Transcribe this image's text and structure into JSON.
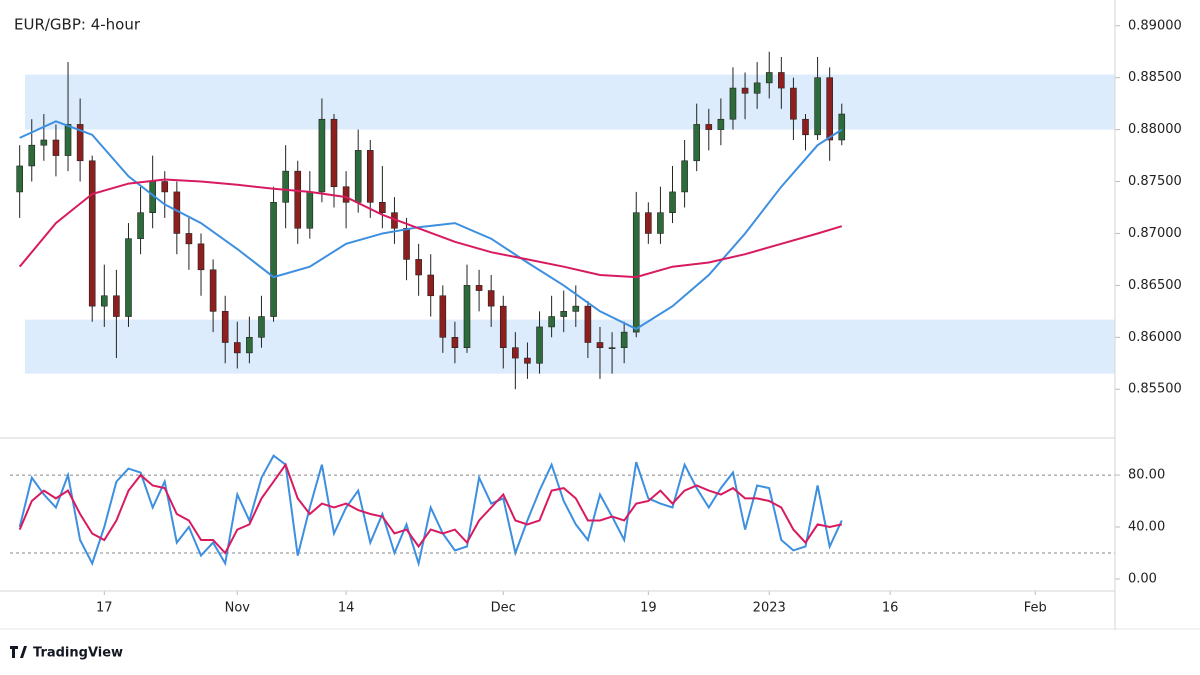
{
  "brand": "TradingView",
  "chart_data": [
    {
      "type": "candlestick",
      "title": "EUR/GBP: 4-hour",
      "x": [
        -7,
        -6,
        -5,
        -4,
        -3,
        -2,
        -1,
        0,
        1,
        2,
        3,
        4,
        5,
        6,
        7,
        8,
        9,
        10,
        11,
        12,
        13,
        14,
        15,
        16,
        17,
        18,
        19,
        20,
        21,
        22,
        23,
        24,
        25,
        26,
        27,
        28,
        29,
        30,
        31,
        32,
        33,
        34,
        35,
        36,
        37,
        38,
        39,
        40,
        41,
        42,
        43,
        44,
        45,
        46,
        47,
        48,
        49,
        50,
        51,
        52,
        53,
        54,
        55,
        56,
        57,
        58,
        59,
        60,
        61
      ],
      "open": [
        0.874,
        0.8765,
        0.8785,
        0.879,
        0.8775,
        0.8805,
        0.877,
        0.863,
        0.864,
        0.862,
        0.8695,
        0.872,
        0.875,
        0.874,
        0.87,
        0.869,
        0.8665,
        0.8625,
        0.8595,
        0.8585,
        0.86,
        0.862,
        0.873,
        0.876,
        0.8705,
        0.874,
        0.881,
        0.8745,
        0.873,
        0.878,
        0.873,
        0.872,
        0.8705,
        0.8675,
        0.866,
        0.864,
        0.86,
        0.859,
        0.865,
        0.8645,
        0.863,
        0.859,
        0.858,
        0.8575,
        0.861,
        0.862,
        0.8625,
        0.863,
        0.8595,
        0.859,
        0.859,
        0.8605,
        0.872,
        0.87,
        0.872,
        0.874,
        0.877,
        0.8805,
        0.88,
        0.881,
        0.884,
        0.8835,
        0.8845,
        0.8855,
        0.884,
        0.881,
        0.8795,
        0.885,
        0.879
      ],
      "high": [
        0.8785,
        0.881,
        0.8815,
        0.8805,
        0.8865,
        0.883,
        0.8775,
        0.867,
        0.8665,
        0.871,
        0.8745,
        0.8775,
        0.876,
        0.875,
        0.8715,
        0.87,
        0.8675,
        0.864,
        0.8615,
        0.862,
        0.864,
        0.8745,
        0.8785,
        0.877,
        0.876,
        0.883,
        0.8815,
        0.876,
        0.88,
        0.879,
        0.8765,
        0.8735,
        0.8715,
        0.869,
        0.868,
        0.865,
        0.8615,
        0.867,
        0.8665,
        0.866,
        0.864,
        0.8605,
        0.8595,
        0.8625,
        0.864,
        0.8645,
        0.865,
        0.8635,
        0.861,
        0.8605,
        0.8615,
        0.874,
        0.873,
        0.8745,
        0.8765,
        0.879,
        0.8825,
        0.882,
        0.883,
        0.886,
        0.8855,
        0.8865,
        0.8875,
        0.887,
        0.885,
        0.8815,
        0.887,
        0.886,
        0.8825
      ],
      "low": [
        0.8715,
        0.875,
        0.877,
        0.8755,
        0.876,
        0.875,
        0.8615,
        0.861,
        0.858,
        0.861,
        0.868,
        0.8705,
        0.8715,
        0.868,
        0.8665,
        0.864,
        0.8605,
        0.8575,
        0.857,
        0.8575,
        0.859,
        0.8615,
        0.8705,
        0.869,
        0.8695,
        0.873,
        0.8725,
        0.8705,
        0.872,
        0.8715,
        0.8705,
        0.869,
        0.8655,
        0.864,
        0.862,
        0.8585,
        0.8575,
        0.8585,
        0.8625,
        0.861,
        0.857,
        0.855,
        0.856,
        0.8565,
        0.86,
        0.8605,
        0.861,
        0.858,
        0.856,
        0.8565,
        0.8575,
        0.86,
        0.869,
        0.869,
        0.871,
        0.8725,
        0.876,
        0.878,
        0.8785,
        0.88,
        0.881,
        0.882,
        0.883,
        0.882,
        0.879,
        0.878,
        0.879,
        0.877,
        0.8785
      ],
      "close": [
        0.8765,
        0.8785,
        0.879,
        0.8775,
        0.8805,
        0.877,
        0.863,
        0.864,
        0.862,
        0.8695,
        0.872,
        0.875,
        0.874,
        0.87,
        0.869,
        0.8665,
        0.8625,
        0.8595,
        0.8585,
        0.86,
        0.862,
        0.873,
        0.876,
        0.8705,
        0.874,
        0.881,
        0.8745,
        0.873,
        0.878,
        0.873,
        0.872,
        0.8705,
        0.8675,
        0.866,
        0.864,
        0.86,
        0.859,
        0.865,
        0.8645,
        0.863,
        0.859,
        0.858,
        0.8575,
        0.861,
        0.862,
        0.8625,
        0.863,
        0.8595,
        0.859,
        0.859,
        0.8605,
        0.872,
        0.87,
        0.872,
        0.874,
        0.877,
        0.8805,
        0.88,
        0.881,
        0.884,
        0.8835,
        0.8845,
        0.8855,
        0.884,
        0.881,
        0.8795,
        0.885,
        0.879,
        0.8815
      ],
      "up_color": "#2e6b3a",
      "down_color": "#8e1f1f",
      "series": [
        {
          "color": "#3d8fe0",
          "x": [
            -7,
            -4,
            -1,
            2,
            5,
            8,
            11,
            14,
            17,
            20,
            23,
            26,
            29,
            32,
            35,
            38,
            41,
            44,
            47,
            50,
            53,
            56,
            59,
            61
          ],
          "values": [
            0.8792,
            0.8808,
            0.8795,
            0.8755,
            0.8728,
            0.871,
            0.8685,
            0.8658,
            0.8668,
            0.869,
            0.87,
            0.8706,
            0.871,
            0.8695,
            0.8672,
            0.865,
            0.8625,
            0.8608,
            0.863,
            0.866,
            0.87,
            0.8745,
            0.8785,
            0.88
          ]
        },
        {
          "color": "#d81b60",
          "x": [
            -7,
            -4,
            -1,
            2,
            5,
            8,
            11,
            14,
            17,
            20,
            23,
            26,
            29,
            32,
            35,
            38,
            41,
            44,
            47,
            50,
            53,
            56,
            59,
            61
          ],
          "values": [
            0.8668,
            0.871,
            0.8738,
            0.8748,
            0.8752,
            0.875,
            0.8747,
            0.8743,
            0.874,
            0.8735,
            0.8718,
            0.8705,
            0.8692,
            0.8682,
            0.8675,
            0.8668,
            0.866,
            0.8658,
            0.8668,
            0.8672,
            0.868,
            0.869,
            0.87,
            0.8707
          ]
        }
      ],
      "zones": [
        {
          "from": 0.88,
          "to": 0.8853
        },
        {
          "from": 0.8565,
          "to": 0.8617
        }
      ],
      "zone_color": "#ddecfc",
      "xlim": [
        -7.8,
        83.6
      ],
      "ylim": [
        0.8504,
        0.892
      ],
      "yticks": [
        {
          "value": 0.855,
          "label": "0.85500"
        },
        {
          "value": 0.86,
          "label": "0.86000"
        },
        {
          "value": 0.865,
          "label": "0.86500"
        },
        {
          "value": 0.87,
          "label": "0.87000"
        },
        {
          "value": 0.875,
          "label": "0.87500"
        },
        {
          "value": 0.88,
          "label": "0.88000"
        },
        {
          "value": 0.885,
          "label": "0.88500"
        },
        {
          "value": 0.89,
          "label": "0.89000"
        }
      ]
    },
    {
      "type": "line",
      "x": [
        -7,
        -6,
        -5,
        -4,
        -3,
        -2,
        -1,
        0,
        1,
        2,
        3,
        4,
        5,
        6,
        7,
        8,
        9,
        10,
        11,
        12,
        13,
        14,
        15,
        16,
        17,
        18,
        19,
        20,
        21,
        22,
        23,
        24,
        25,
        26,
        27,
        28,
        29,
        30,
        31,
        32,
        33,
        34,
        35,
        36,
        37,
        38,
        39,
        40,
        41,
        42,
        43,
        44,
        45,
        46,
        47,
        48,
        49,
        50,
        51,
        52,
        53,
        54,
        55,
        56,
        57,
        58,
        59,
        60,
        61
      ],
      "series": [
        {
          "color": "#3d8fe0",
          "values": [
            40,
            78,
            65,
            55,
            80,
            30,
            12,
            40,
            75,
            85,
            82,
            55,
            75,
            28,
            40,
            18,
            28,
            12,
            65,
            45,
            78,
            95,
            88,
            18,
            55,
            88,
            35,
            55,
            68,
            28,
            50,
            20,
            42,
            12,
            55,
            35,
            22,
            25,
            78,
            58,
            62,
            20,
            45,
            68,
            88,
            60,
            42,
            30,
            65,
            48,
            30,
            90,
            62,
            58,
            55,
            88,
            70,
            55,
            70,
            82,
            38,
            72,
            70,
            30,
            22,
            25,
            72,
            25,
            45
          ]
        },
        {
          "color": "#d81b60",
          "values": [
            38,
            60,
            68,
            62,
            68,
            50,
            35,
            30,
            45,
            68,
            80,
            72,
            70,
            50,
            45,
            30,
            30,
            20,
            38,
            42,
            62,
            75,
            88,
            62,
            50,
            58,
            55,
            58,
            53,
            50,
            48,
            35,
            38,
            25,
            38,
            35,
            38,
            28,
            45,
            55,
            65,
            45,
            42,
            45,
            68,
            70,
            62,
            45,
            45,
            48,
            45,
            58,
            60,
            68,
            58,
            68,
            72,
            68,
            65,
            70,
            62,
            62,
            60,
            55,
            38,
            28,
            42,
            40,
            42
          ]
        }
      ],
      "levels": [
        80,
        20
      ],
      "xlim": [
        -7.8,
        83.6
      ],
      "ylim": [
        -8.5,
        107
      ],
      "yticks": [
        {
          "value": 0,
          "label": "0.00"
        },
        {
          "value": 40,
          "label": "40.00"
        },
        {
          "value": 80,
          "label": "80.00"
        }
      ],
      "xticks": [
        {
          "value": 0,
          "label": "17"
        },
        {
          "value": 11,
          "label": "Nov"
        },
        {
          "value": 20,
          "label": "14"
        },
        {
          "value": 33,
          "label": "Dec"
        },
        {
          "value": 45,
          "label": "19"
        },
        {
          "value": 55,
          "label": "2023"
        },
        {
          "value": 65,
          "label": "16"
        },
        {
          "value": 77,
          "label": "Feb"
        }
      ]
    }
  ]
}
